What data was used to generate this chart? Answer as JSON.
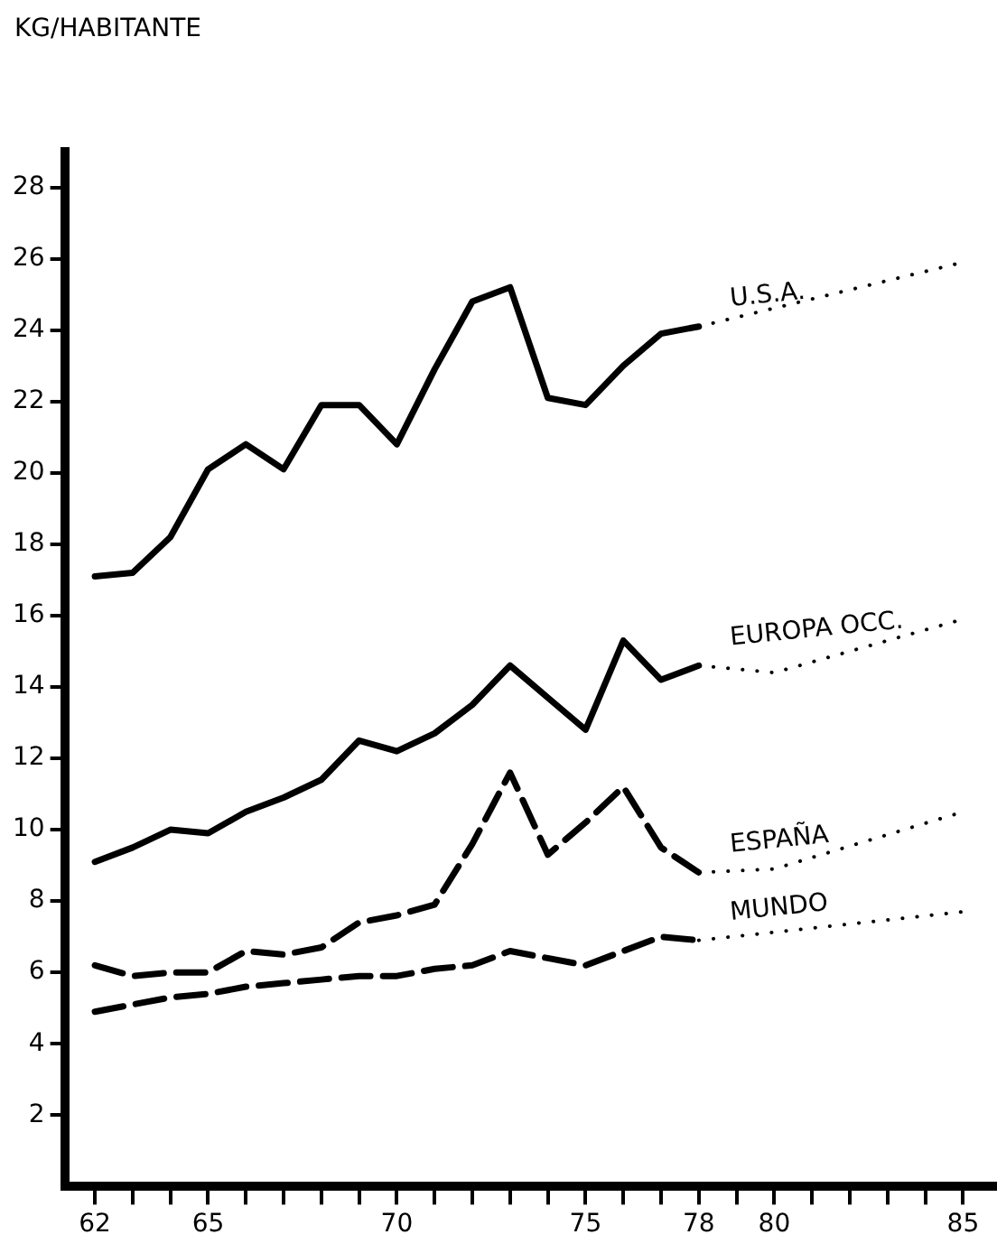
{
  "chart_data": {
    "type": "line",
    "ylabel": "KG/HABITANTE",
    "x": [
      62,
      63,
      64,
      65,
      66,
      67,
      68,
      69,
      70,
      71,
      72,
      73,
      74,
      75,
      76,
      77,
      78
    ],
    "series": [
      {
        "name": "U.S.A.",
        "color": "#000000",
        "line_style": "solid",
        "values": [
          17.1,
          17.2,
          18.2,
          20.1,
          20.8,
          20.1,
          21.9,
          21.9,
          20.8,
          22.9,
          24.8,
          25.2,
          22.1,
          21.9,
          23.0,
          23.9,
          24.1
        ]
      },
      {
        "color": "#000000",
        "line_style": "dotted",
        "x": [
          78,
          85
        ],
        "values": [
          24.1,
          25.9
        ]
      },
      {
        "name": "EUROPA OCC.",
        "color": "#000000",
        "line_style": "solid",
        "values": [
          9.1,
          9.5,
          10.0,
          9.9,
          10.5,
          10.9,
          11.4,
          12.5,
          12.2,
          12.7,
          13.5,
          14.6,
          13.7,
          12.8,
          15.3,
          14.2,
          14.6
        ]
      },
      {
        "color": "#000000",
        "line_style": "dotted",
        "x": [
          78,
          80,
          85
        ],
        "values": [
          14.6,
          14.4,
          15.9
        ]
      },
      {
        "name": "ESPAÑA",
        "color": "#000000",
        "line_style": "dashed",
        "values": [
          6.2,
          5.9,
          6.0,
          6.0,
          6.6,
          6.5,
          6.7,
          7.4,
          7.6,
          7.9,
          9.6,
          11.6,
          9.3,
          10.2,
          11.2,
          9.5,
          8.8
        ]
      },
      {
        "color": "#000000",
        "line_style": "dotted",
        "x": [
          78,
          80,
          85
        ],
        "values": [
          8.8,
          8.9,
          10.5
        ]
      },
      {
        "name": "MUNDO",
        "color": "#000000",
        "line_style": "dashed",
        "values": [
          4.9,
          5.1,
          5.3,
          5.4,
          5.6,
          5.7,
          5.8,
          5.9,
          5.9,
          6.1,
          6.2,
          6.6,
          6.4,
          6.2,
          6.6,
          7.0,
          6.9
        ]
      },
      {
        "color": "#000000",
        "line_style": "dotted",
        "x": [
          78,
          85
        ],
        "values": [
          6.9,
          7.7
        ]
      }
    ],
    "xlim": [
      61.2,
      85.9
    ],
    "xticks": [
      62,
      {
        "value": 63,
        "label": null
      },
      {
        "value": 64,
        "label": null
      },
      65,
      {
        "value": 66,
        "label": null
      },
      {
        "value": 67,
        "label": null
      },
      {
        "value": 68,
        "label": null
      },
      {
        "value": 69,
        "label": null
      },
      70,
      {
        "value": 71,
        "label": null
      },
      {
        "value": 72,
        "label": null
      },
      {
        "value": 73,
        "label": null
      },
      {
        "value": 74,
        "label": null
      },
      75,
      {
        "value": 76,
        "label": null
      },
      {
        "value": 77,
        "label": null
      },
      78,
      {
        "value": 79,
        "label": null
      },
      80,
      {
        "value": 81,
        "label": null
      },
      {
        "value": 82,
        "label": null
      },
      {
        "value": 83,
        "label": null
      },
      {
        "value": 84,
        "label": null
      },
      85
    ],
    "ylim": [
      0,
      29
    ],
    "yticks": [
      2,
      4,
      6,
      8,
      10,
      12,
      14,
      16,
      18,
      20,
      22,
      24,
      26,
      28
    ],
    "grid": false,
    "legend": false,
    "marker": "none"
  }
}
